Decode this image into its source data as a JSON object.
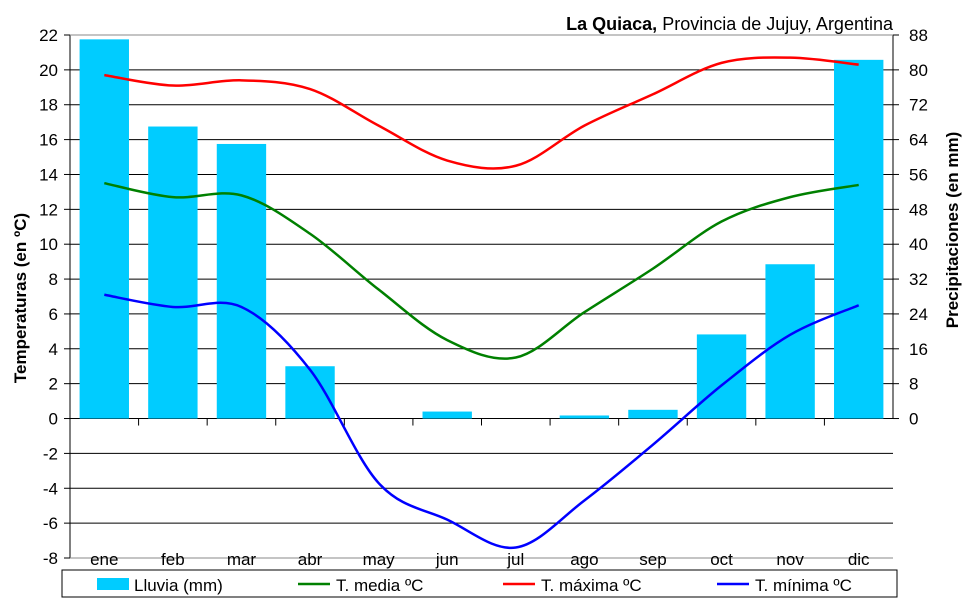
{
  "chart_data": {
    "type": "bar+line",
    "title_bold": "La Quiaca,",
    "title_rest": " Provincia de Jujuy, Argentina",
    "ylabel_left": "Temperaturas (en ºC)",
    "ylabel_right": "Precipitaciones (en mm)",
    "ylim_left": [
      -8,
      22
    ],
    "yticks_left": [
      22,
      20,
      18,
      16,
      14,
      12,
      10,
      8,
      6,
      4,
      2,
      0,
      -2,
      -4,
      -6,
      -8
    ],
    "ylim_right": [
      0,
      88
    ],
    "yticks_right": [
      88,
      80,
      72,
      64,
      56,
      48,
      40,
      32,
      24,
      16,
      8,
      0
    ],
    "grid": true,
    "legend_placement": "bottom",
    "categories": [
      "ene",
      "feb",
      "mar",
      "abr",
      "may",
      "jun",
      "jul",
      "ago",
      "sep",
      "oct",
      "nov",
      "dic"
    ],
    "bars": {
      "name": "Lluvia (mm)",
      "color": "#00CCFF",
      "axis": "right",
      "values": [
        87,
        67,
        63,
        12,
        0,
        1.6,
        0,
        0.7,
        2,
        19.3,
        35.4,
        82.3
      ]
    },
    "series": [
      {
        "name": "T. media ºC",
        "color": "#008000",
        "axis": "left",
        "values": [
          13.5,
          12.7,
          12.8,
          10.6,
          7.4,
          4.5,
          3.5,
          6.1,
          8.6,
          11.3,
          12.7,
          13.4
        ]
      },
      {
        "name": "T. máxima ºC",
        "color": "#FF0000",
        "axis": "left",
        "values": [
          19.7,
          19.1,
          19.4,
          18.9,
          16.8,
          14.8,
          14.5,
          16.8,
          18.6,
          20.4,
          20.7,
          20.3
        ]
      },
      {
        "name": "T. mínima ºC",
        "color": "#0000FF",
        "axis": "left",
        "values": [
          7.1,
          6.4,
          6.4,
          2.8,
          -3.7,
          -5.8,
          -7.4,
          -4.7,
          -1.5,
          1.9,
          4.8,
          6.5
        ]
      }
    ]
  }
}
